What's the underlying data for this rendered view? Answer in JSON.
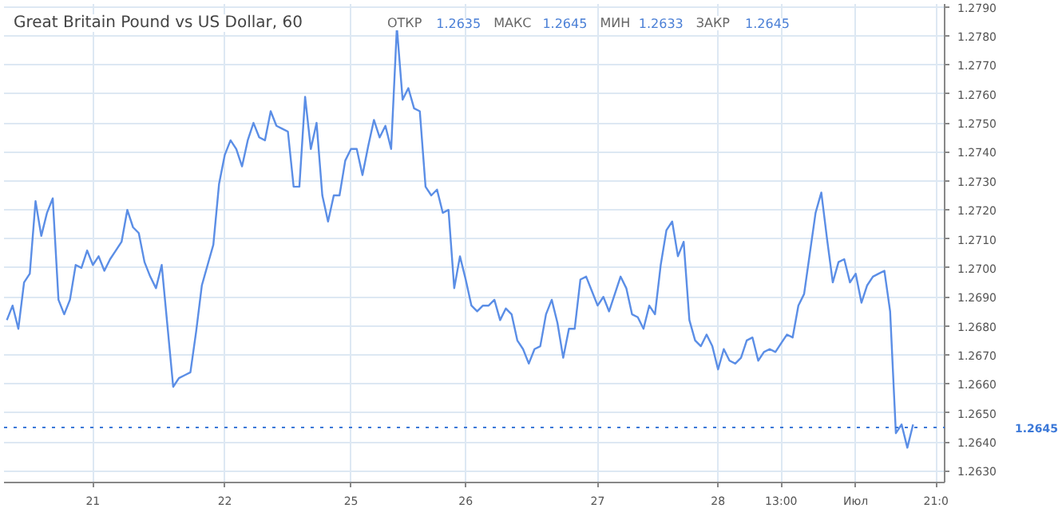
{
  "chart_data": {
    "type": "line",
    "title": "Great Britain Pound vs US Dollar, 60",
    "annotations": [
      "ОТКР 1.2635",
      "МАКС 1.2645",
      "МИН 1.2633",
      "ЗАКР 1.2645"
    ],
    "categories": [
      null,
      null,
      null,
      null,
      null,
      null,
      null,
      null,
      null,
      null,
      null,
      null,
      null,
      null,
      null,
      "21",
      null,
      null,
      null,
      null,
      null,
      null,
      null,
      null,
      null,
      null,
      null,
      null,
      null,
      null,
      null,
      null,
      null,
      null,
      null,
      null,
      null,
      null,
      "22",
      null,
      null,
      null,
      null,
      null,
      null,
      null,
      null,
      null,
      null,
      null,
      null,
      null,
      null,
      null,
      null,
      null,
      null,
      null,
      null,
      null,
      "25",
      null,
      null,
      null,
      null,
      null,
      null,
      null,
      null,
      null,
      null,
      null,
      null,
      null,
      null,
      null,
      null,
      null,
      null,
      null,
      "26",
      null,
      null,
      null,
      null,
      null,
      null,
      null,
      null,
      null,
      null,
      null,
      null,
      null,
      null,
      null,
      null,
      null,
      null,
      null,
      null,
      null,
      null,
      "27",
      null,
      null,
      null,
      null,
      null,
      null,
      null,
      null,
      null,
      null,
      null,
      null,
      null,
      null,
      null,
      null,
      null,
      null,
      null,
      null,
      "28",
      null,
      null,
      null,
      null,
      null,
      null,
      null,
      null,
      null,
      null,
      "13:00",
      null,
      null,
      null,
      null,
      null,
      null,
      null,
      null,
      null,
      null,
      null,
      null,
      "Июл",
      null,
      null,
      null,
      null,
      null,
      null,
      null,
      null,
      null,
      null,
      null,
      null,
      null,
      "21:0",
      null
    ],
    "series": [
      {
        "color": "#5b8ee6",
        "values": [
          1.2682,
          1.2687,
          1.2679,
          1.2695,
          1.2698,
          1.2723,
          1.2711,
          1.2719,
          1.2724,
          1.2689,
          1.2684,
          1.2689,
          1.2701,
          1.27,
          1.2706,
          1.2701,
          1.2704,
          1.2699,
          1.2703,
          1.2706,
          1.2709,
          1.272,
          1.2714,
          1.2712,
          1.2702,
          1.2697,
          1.2693,
          1.2701,
          1.268,
          1.2659,
          1.2662,
          1.2663,
          1.2664,
          1.2678,
          1.2694,
          1.2701,
          1.2708,
          1.2729,
          1.2739,
          1.2744,
          1.2741,
          1.2735,
          1.2744,
          1.275,
          1.2745,
          1.2744,
          1.2754,
          1.2749,
          1.2748,
          1.2747,
          1.2728,
          1.2728,
          1.2759,
          1.2741,
          1.275,
          1.2725,
          1.2716,
          1.2725,
          1.2725,
          1.2737,
          1.2741,
          1.2741,
          1.2732,
          1.2742,
          1.2751,
          1.2745,
          1.2749,
          1.2741,
          1.2783,
          1.2758,
          1.2762,
          1.2755,
          1.2754,
          1.2728,
          1.2725,
          1.2727,
          1.2719,
          1.272,
          1.2693,
          1.2704,
          1.2696,
          1.2687,
          1.2685,
          1.2687,
          1.2687,
          1.2689,
          1.2682,
          1.2686,
          1.2684,
          1.2675,
          1.2672,
          1.2667,
          1.2672,
          1.2673,
          1.2684,
          1.2689,
          1.2681,
          1.2669,
          1.2679,
          1.2679,
          1.2696,
          1.2697,
          1.2692,
          1.2687,
          1.269,
          1.2685,
          1.2691,
          1.2697,
          1.2693,
          1.2684,
          1.2683,
          1.2679,
          1.2687,
          1.2684,
          1.2701,
          1.2713,
          1.2716,
          1.2704,
          1.2709,
          1.2682,
          1.2675,
          1.2673,
          1.2677,
          1.2673,
          1.2665,
          1.2672,
          1.2668,
          1.2667,
          1.2669,
          1.2675,
          1.2676,
          1.2668,
          1.2671,
          1.2672,
          1.2671,
          1.2674,
          1.2677,
          1.2676,
          1.2687,
          1.2691,
          1.2705,
          1.2719,
          1.2726,
          1.271,
          1.2695,
          1.2702,
          1.2703,
          1.2695,
          1.2698,
          1.2688,
          1.2694,
          1.2697,
          1.2698,
          1.2699,
          1.2685,
          1.2643,
          1.2646,
          1.2638,
          1.2646,
          null,
          null,
          null,
          null,
          null
        ]
      }
    ],
    "ylim": [
      1.2626,
      1.2791
    ],
    "yticks": [
      {
        "value": 1.263,
        "label": "1.2630"
      },
      {
        "value": 1.264,
        "label": "1.2640"
      },
      {
        "value": 1.265,
        "label": "1.2650"
      },
      {
        "value": 1.266,
        "label": "1.2660"
      },
      {
        "value": 1.267,
        "label": "1.2670"
      },
      {
        "value": 1.268,
        "label": "1.2680"
      },
      {
        "value": 1.269,
        "label": "1.2690"
      },
      {
        "value": 1.27,
        "label": "1.2700"
      },
      {
        "value": 1.271,
        "label": "1.2710"
      },
      {
        "value": 1.272,
        "label": "1.2720"
      },
      {
        "value": 1.273,
        "label": "1.2730"
      },
      {
        "value": 1.274,
        "label": "1.2740"
      },
      {
        "value": 1.275,
        "label": "1.2750"
      },
      {
        "value": 1.276,
        "label": "1.2760"
      },
      {
        "value": 1.277,
        "label": "1.2770"
      },
      {
        "value": 1.278,
        "label": "1.2780"
      },
      {
        "value": 1.279,
        "label": "1.2790"
      }
    ],
    "ref_lines": [
      {
        "axis": "y",
        "value": 1.2645,
        "label": "1.2645",
        "color": "#3b78d8",
        "line_style": "dotted"
      }
    ],
    "grid": true,
    "marker": "none",
    "line_style": "solid"
  }
}
